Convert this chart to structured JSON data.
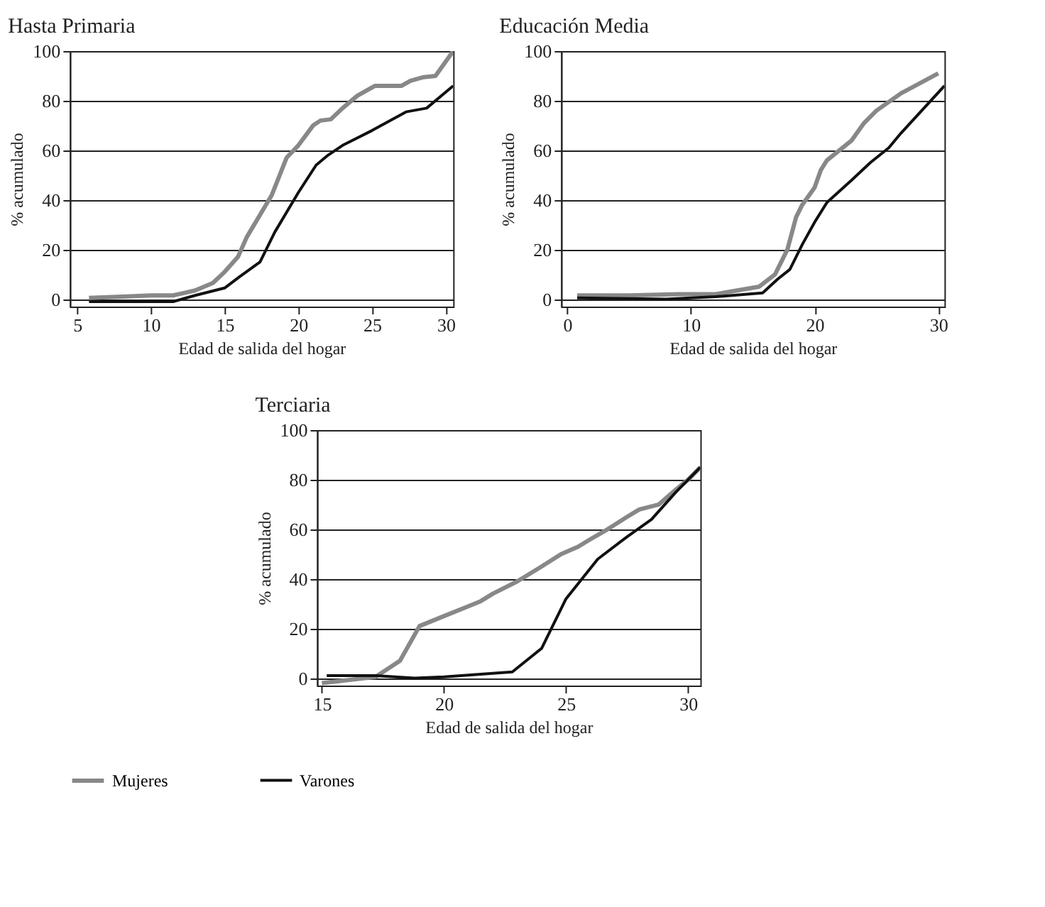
{
  "chart_data": [
    {
      "type": "line",
      "title": "Hasta Primaria",
      "xlabel": "Edad de salida del hogar",
      "ylabel": "% acumulado",
      "xlim": [
        4.5,
        30.5
      ],
      "xticks": [
        5,
        10,
        15,
        20,
        25,
        30
      ],
      "ylim": [
        -3,
        100
      ],
      "yticks": [
        0,
        20,
        40,
        60,
        80,
        100
      ],
      "grid": "y",
      "legend": "bottom",
      "series": [
        {
          "name": "Mujeres",
          "color": "#888888",
          "x": [
            5.8,
            8,
            10,
            11.5,
            13,
            14.2,
            15,
            15.9,
            16.5,
            17.5,
            18.2,
            19.2,
            20,
            21,
            21.5,
            22.2,
            23,
            24,
            25.2,
            26,
            27,
            27.6,
            28.5,
            29.3,
            30.5
          ],
          "values": [
            0.5,
            1,
            1.5,
            1.5,
            3.5,
            6.5,
            11,
            17,
            25,
            35,
            42,
            57,
            62,
            70,
            72,
            72.5,
            77,
            82,
            86,
            86,
            86,
            88,
            89.5,
            90,
            100
          ]
        },
        {
          "name": "Varones",
          "color": "#111111",
          "x": [
            5.8,
            11.5,
            13,
            15,
            16,
            17.4,
            18.4,
            20,
            21.2,
            22,
            23,
            25,
            27.3,
            28.7,
            30.5
          ],
          "values": [
            -1,
            -1,
            1.5,
            4.5,
            9,
            15,
            27,
            43,
            54,
            58,
            62,
            68,
            75.5,
            77,
            86
          ]
        }
      ]
    },
    {
      "type": "line",
      "title": "Educación Media",
      "xlabel": "Edad de salida del hogar",
      "ylabel": "% acumulado",
      "xlim": [
        -0.5,
        30.5
      ],
      "xticks": [
        0,
        10,
        20,
        30
      ],
      "ylim": [
        -3,
        100
      ],
      "yticks": [
        0,
        20,
        40,
        60,
        80,
        100
      ],
      "grid": "y",
      "legend": "bottom",
      "series": [
        {
          "name": "Mujeres",
          "color": "#888888",
          "x": [
            0.8,
            5,
            9,
            12,
            15.5,
            16.8,
            17.8,
            18.5,
            19,
            20,
            20.5,
            21,
            22,
            23,
            24,
            25,
            27,
            30
          ],
          "values": [
            1.5,
            1.5,
            2,
            2,
            5,
            10,
            20,
            33,
            38,
            45,
            52,
            56,
            60,
            64,
            71,
            76,
            83,
            91
          ]
        },
        {
          "name": "Varones",
          "color": "#111111",
          "x": [
            0.8,
            8,
            10,
            12,
            15.8,
            17,
            18,
            19,
            20,
            21,
            23,
            24.5,
            26,
            27,
            30.5
          ],
          "values": [
            0.5,
            0,
            0.5,
            1,
            2.5,
            8,
            12,
            22,
            31,
            39,
            48,
            55,
            61,
            67,
            86
          ]
        }
      ]
    },
    {
      "type": "line",
      "title": "Terciaria",
      "xlabel": "Edad de salida del hogar",
      "ylabel": "% acumulado",
      "xlim": [
        14.8,
        30.5
      ],
      "xticks": [
        15,
        20,
        25,
        30
      ],
      "ylim": [
        -3,
        100
      ],
      "yticks": [
        0,
        20,
        40,
        60,
        80,
        100
      ],
      "grid": "y",
      "legend": "bottom",
      "series": [
        {
          "name": "Mujeres",
          "color": "#888888",
          "x": [
            15,
            17.2,
            18.2,
            19,
            20,
            21,
            21.5,
            22,
            23,
            24,
            24.8,
            25.5,
            26,
            26.7,
            27.5,
            28,
            28.8,
            29.5,
            30,
            30.5
          ],
          "values": [
            -2,
            0.5,
            7,
            21,
            25,
            29,
            31,
            34,
            39,
            45,
            50,
            53,
            56,
            60,
            65,
            68,
            70,
            76,
            80,
            85
          ]
        },
        {
          "name": "Varones",
          "color": "#111111",
          "x": [
            15.2,
            17.2,
            18.8,
            20,
            22.8,
            24,
            25,
            26.3,
            27.5,
            28.5,
            29.5,
            30.5
          ],
          "values": [
            1,
            1,
            0,
            0.5,
            2.5,
            12,
            32,
            48,
            57,
            64,
            75,
            85
          ]
        }
      ]
    }
  ]
}
